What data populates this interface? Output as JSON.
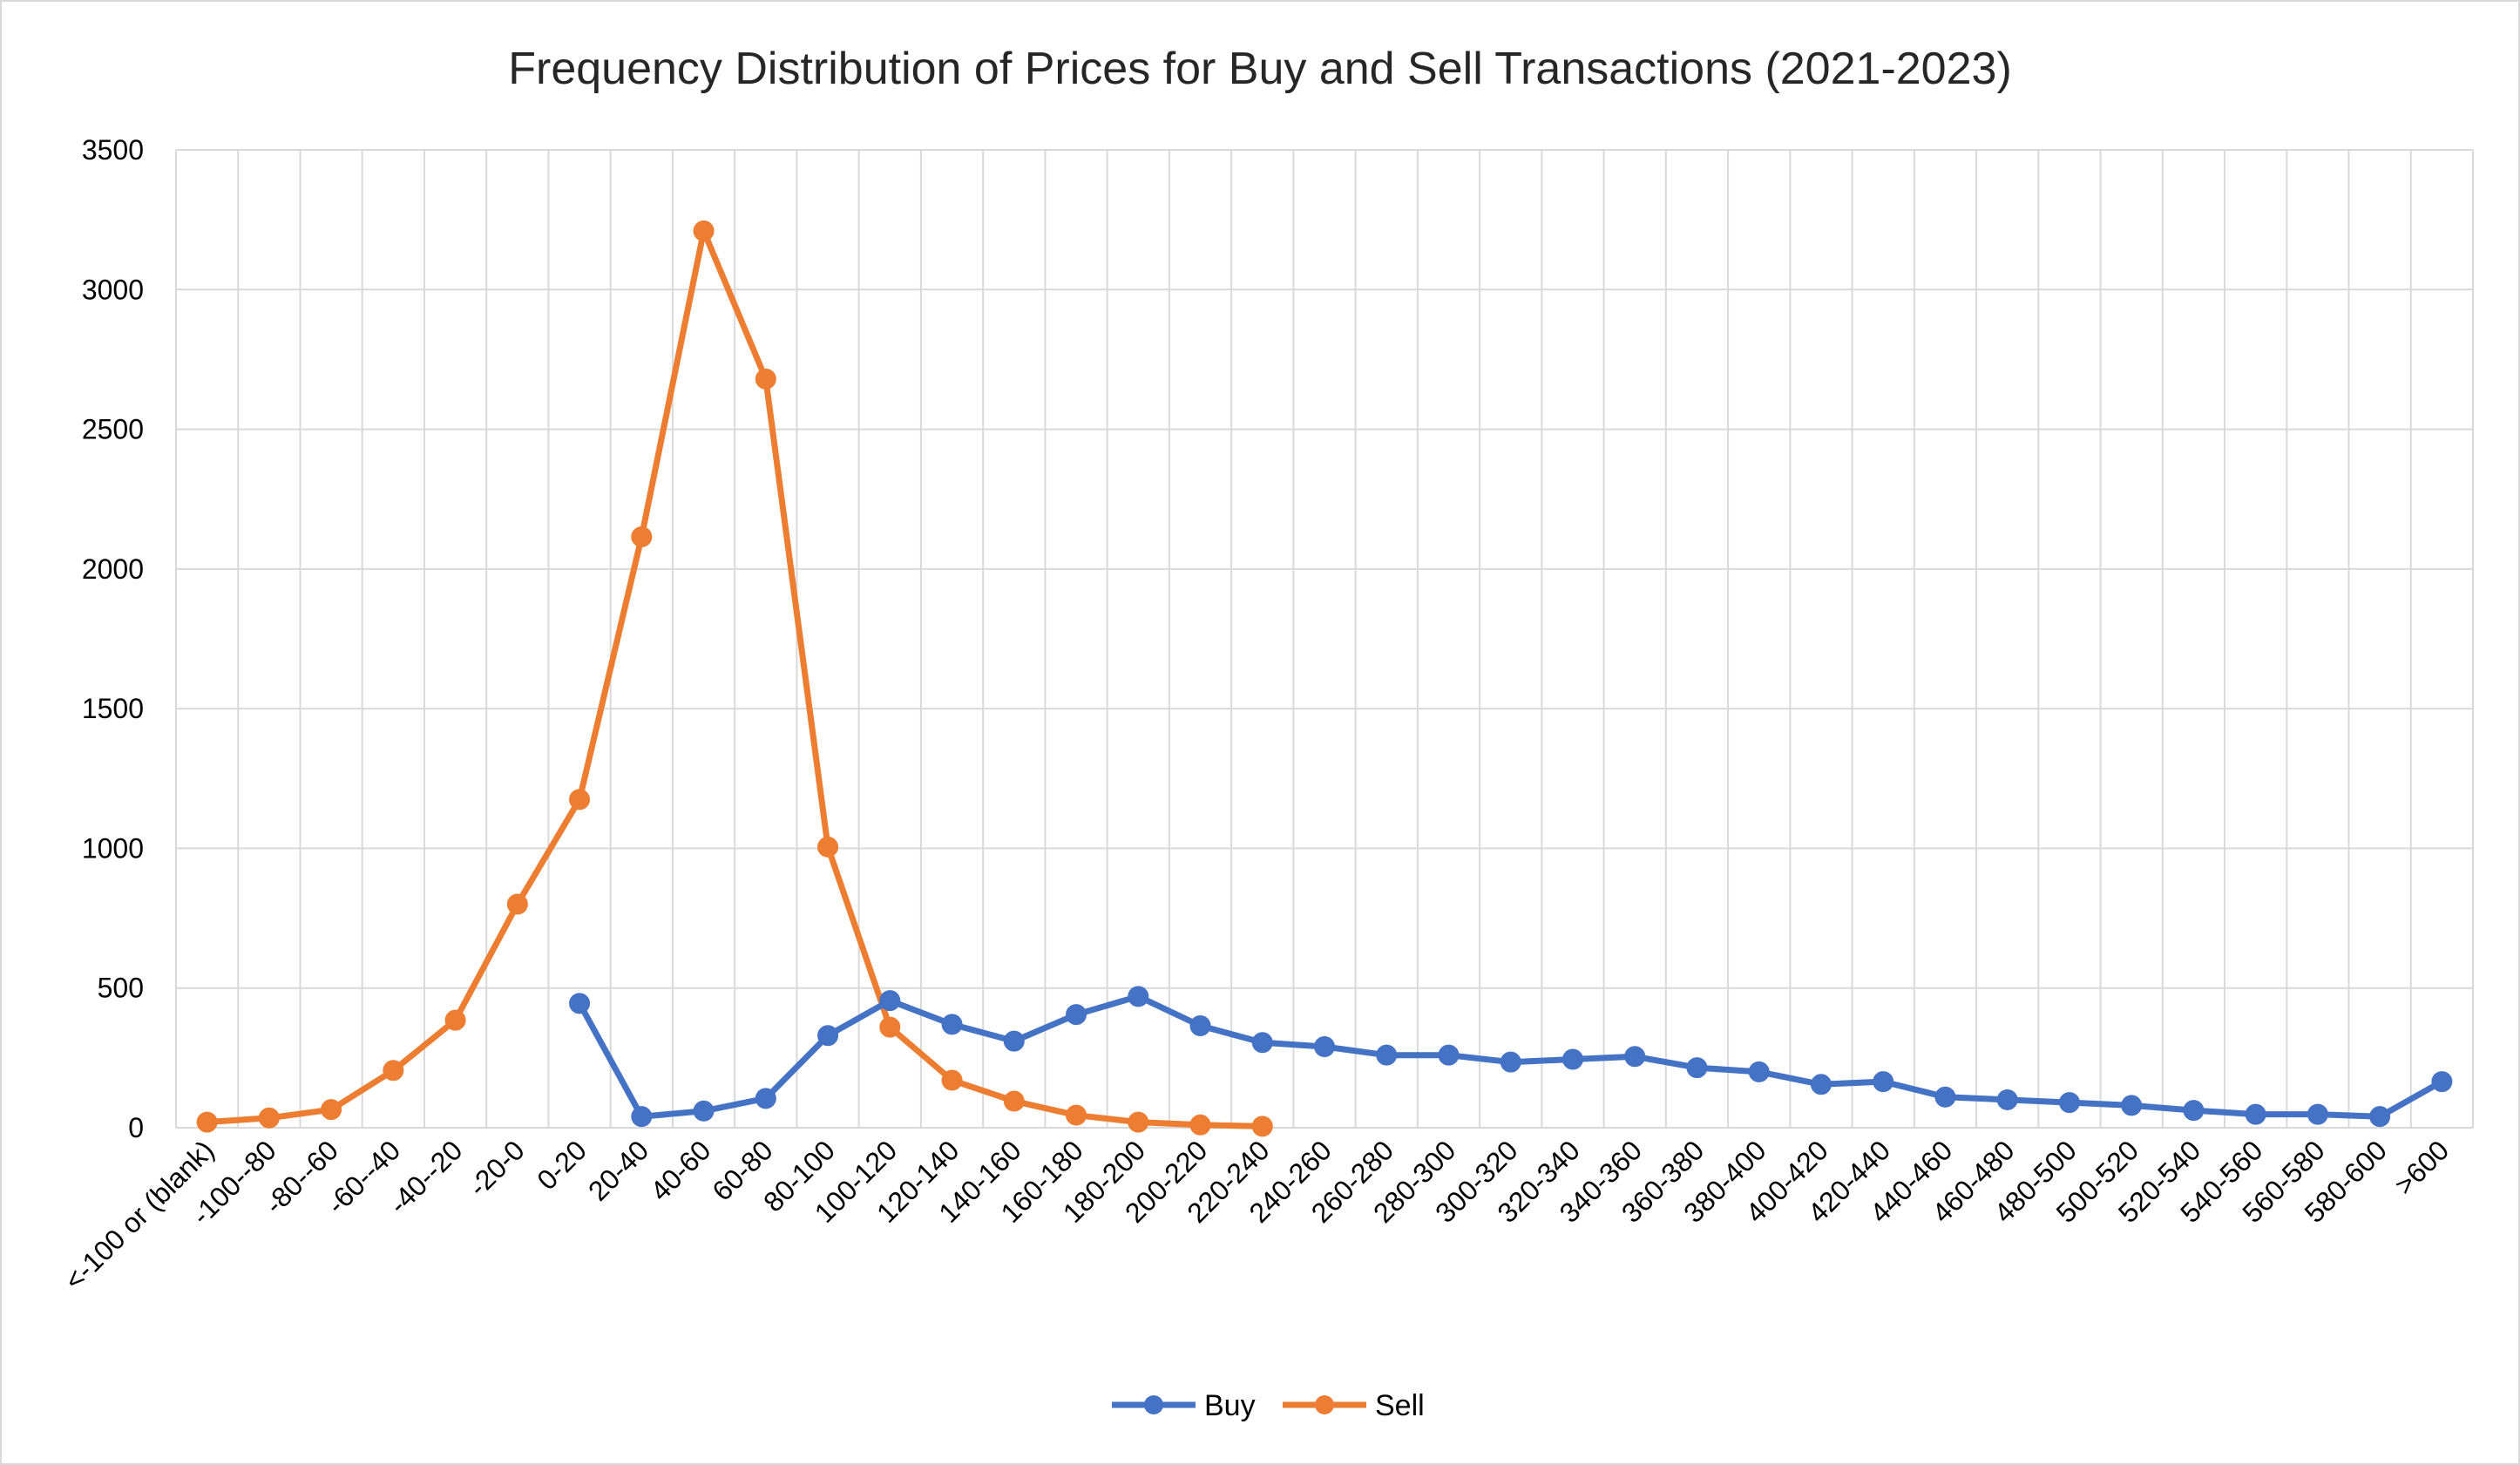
{
  "chart_data": {
    "type": "line",
    "title": "Frequency Distribution of Prices for Buy and Sell Transactions (2021-2023)",
    "xlabel": "",
    "ylabel": "",
    "ylim": [
      0,
      3500
    ],
    "yticks": [
      "0",
      "500",
      "1000",
      "1500",
      "2000",
      "2500",
      "3000",
      "3500"
    ],
    "grid": true,
    "legend_position": "bottom-center",
    "categories": [
      "<-100 or (blank)",
      "-100--80",
      "-80--60",
      "-60--40",
      "-40--20",
      "-20-0",
      "0-20",
      "20-40",
      "40-60",
      "60-80",
      "80-100",
      "100-120",
      "120-140",
      "140-160",
      "160-180",
      "180-200",
      "200-220",
      "220-240",
      "240-260",
      "260-280",
      "280-300",
      "300-320",
      "320-340",
      "340-360",
      "360-380",
      "380-400",
      "400-420",
      "420-440",
      "440-460",
      "460-480",
      "480-500",
      "500-520",
      "520-540",
      "540-560",
      "560-580",
      "580-600",
      ">600"
    ],
    "series": [
      {
        "name": "Buy",
        "color": "#4472c4",
        "values": [
          null,
          null,
          null,
          null,
          null,
          null,
          445,
          40,
          60,
          105,
          330,
          455,
          370,
          310,
          405,
          470,
          365,
          305,
          290,
          260,
          260,
          235,
          245,
          255,
          215,
          200,
          155,
          165,
          110,
          100,
          90,
          80,
          62,
          48,
          48,
          40,
          165
        ]
      },
      {
        "name": "Sell",
        "color": "#ed7d31",
        "values": [
          20,
          35,
          65,
          205,
          385,
          800,
          1175,
          2115,
          3210,
          2680,
          1005,
          360,
          170,
          95,
          45,
          20,
          10,
          5,
          null,
          null,
          null,
          null,
          null,
          null,
          null,
          null,
          null,
          null,
          null,
          null,
          null,
          null,
          null,
          null,
          null,
          null,
          null
        ]
      }
    ]
  }
}
